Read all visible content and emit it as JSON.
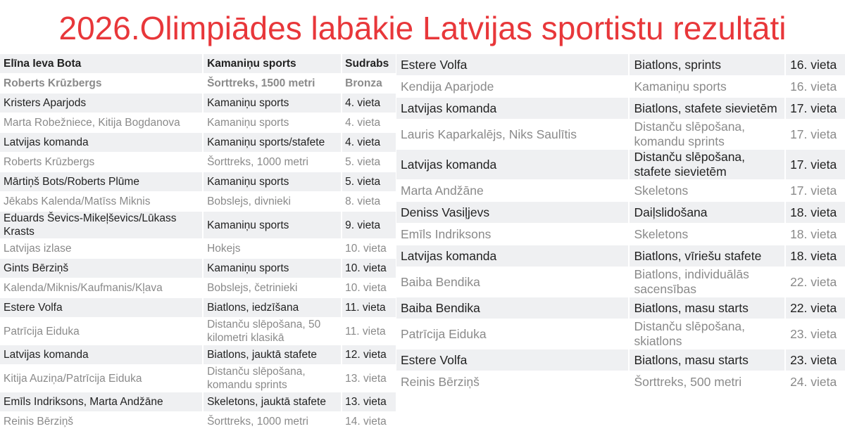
{
  "title": "2026.Olimpiādes labākie Latvijas sportistu rezultāti",
  "colors": {
    "title": "#e8373a",
    "row_shaded": "#eff0f2",
    "row_plain": "#ffffff",
    "text_dark": "#222222",
    "text_muted": "#8a8a8a"
  },
  "left_table": {
    "header": {
      "athlete": "Elīna Ieva Bota",
      "sport": "Kamaniņu sports",
      "result": "Sudrabs"
    },
    "rows": [
      {
        "athlete": "Roberts Krūzbergs",
        "sport": "Šorttreks, 1500 metri",
        "result": "Bronza"
      },
      {
        "athlete": "Kristers Aparjods",
        "sport": "Kamaniņu sports",
        "result": "4. vieta"
      },
      {
        "athlete": "Marta Robežniece, Kitija Bogdanova",
        "sport": "Kamaniņu sports",
        "result": "4. vieta"
      },
      {
        "athlete": "Latvijas komanda",
        "sport": "Kamaniņu sports/stafete",
        "result": "4. vieta"
      },
      {
        "athlete": "Roberts Krūzbergs",
        "sport": "Šorttreks, 1000 metri",
        "result": "5. vieta"
      },
      {
        "athlete": "Mārtiņš Bots/Roberts Plūme",
        "sport": "Kamaniņu sports",
        "result": "5. vieta"
      },
      {
        "athlete": "Jēkabs Kalenda/Matīss Miknis",
        "sport": "Bobslejs, divnieki",
        "result": "8. vieta"
      },
      {
        "athlete": "Eduards Ševics-Mikeļševics/Lūkass Krasts",
        "sport": "Kamaniņu sports",
        "result": "9. vieta"
      },
      {
        "athlete": "Latvijas izlase",
        "sport": "Hokejs",
        "result": "10. vieta"
      },
      {
        "athlete": "Gints Bērziņš",
        "sport": "Kamaniņu sports",
        "result": "10. vieta"
      },
      {
        "athlete": "Kalenda/Miknis/Kaufmanis/Kļava",
        "sport": "Bobslejs, četrinieki",
        "result": "10. vieta"
      },
      {
        "athlete": "Estere Volfa",
        "sport": "Biatlons, iedzīšana",
        "result": "11. vieta"
      },
      {
        "athlete": "Patrīcija Eiduka",
        "sport": "Distanču slēpošana, 50 kilometri klasikā",
        "result": "11. vieta"
      },
      {
        "athlete": "Latvijas komanda",
        "sport": "Biatlons, jauktā stafete",
        "result": "12. vieta"
      },
      {
        "athlete": "Kitija Auziņa/Patrīcija Eiduka",
        "sport": "Distanču slēpošana, komandu sprints",
        "result": "13. vieta"
      },
      {
        "athlete": "Emīls Indriksons, Marta Andžāne",
        "sport": "Skeletons, jauktā stafete",
        "result": "13. vieta"
      },
      {
        "athlete": "Reinis Bērziņš",
        "sport": "Šorttreks, 1000 metri",
        "result": "14. vieta"
      }
    ]
  },
  "right_table": {
    "rows": [
      {
        "athlete": "Estere Volfa",
        "sport": "Biatlons, sprints",
        "result": "16. vieta"
      },
      {
        "athlete": "Kendija Aparjode",
        "sport": "Kamaniņu sports",
        "result": "16. vieta"
      },
      {
        "athlete": "Latvijas komanda",
        "sport": "Biatlons, stafete sievietēm",
        "result": "17. vieta"
      },
      {
        "athlete": "Lauris Kaparkalējs, Niks Saulītis",
        "sport": "Distanču slēpošana, komandu sprints",
        "result": "17. vieta"
      },
      {
        "athlete": "Latvijas komanda",
        "sport": "Distanču slēpošana, stafete sievietēm",
        "result": "17. vieta"
      },
      {
        "athlete": "Marta Andžāne",
        "sport": "Skeletons",
        "result": "17. vieta"
      },
      {
        "athlete": "Deniss Vasiļjevs",
        "sport": "Daiļslidošana",
        "result": "18. vieta"
      },
      {
        "athlete": "Emīls Indriksons",
        "sport": "Skeletons",
        "result": "18. vieta"
      },
      {
        "athlete": "Latvijas komanda",
        "sport": "Biatlons, vīriešu stafete",
        "result": "18. vieta"
      },
      {
        "athlete": "Baiba Bendika",
        "sport": "Biatlons, individuālās sacensības",
        "result": "22. vieta"
      },
      {
        "athlete": "Baiba Bendika",
        "sport": "Biatlons, masu starts",
        "result": "22. vieta"
      },
      {
        "athlete": "Patrīcija Eiduka",
        "sport": "Distanču slēpošana, skiatlons",
        "result": "23. vieta"
      },
      {
        "athlete": "Estere Volfa",
        "sport": "Biatlons, masu starts",
        "result": "23. vieta"
      },
      {
        "athlete": "Reinis Bērziņš",
        "sport": "Šorttreks, 500 metri",
        "result": "24. vieta"
      }
    ]
  }
}
